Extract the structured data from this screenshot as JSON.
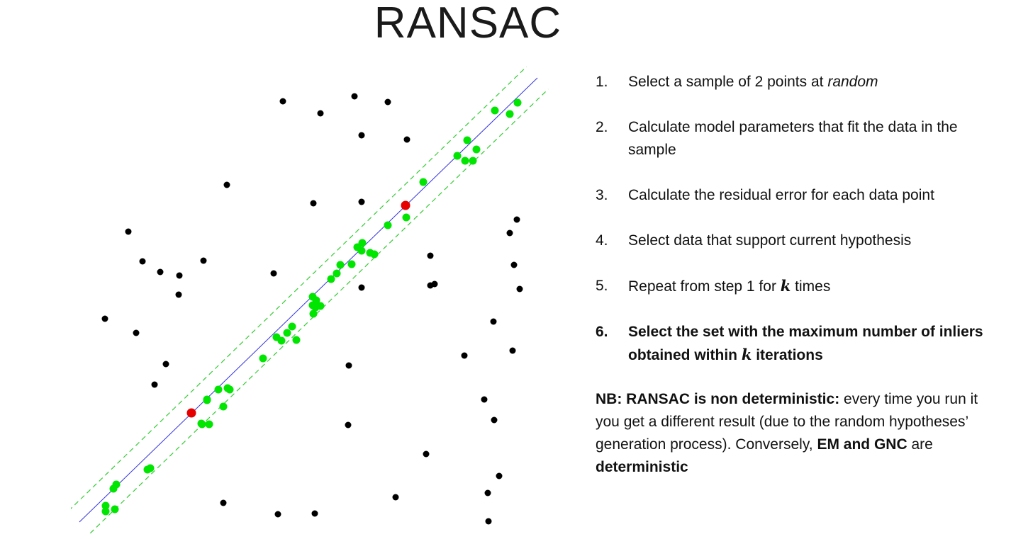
{
  "title": "RANSAC",
  "steps": [
    {
      "number": "1.",
      "text_before": "Select a sample of 2 points at ",
      "italic": "random",
      "text_after": ""
    },
    {
      "number": "2.",
      "text": "Calculate model parameters that fit the data in the sample"
    },
    {
      "number": "3.",
      "text": "Calculate the residual error for each data point"
    },
    {
      "number": "4.",
      "text": "Select data that support current hypothesis"
    },
    {
      "number": "5.",
      "text_before": "Repeat from step 1 for ",
      "var": "k",
      "text_after": " times"
    },
    {
      "number": "6.",
      "text_before": "Select the set with the maximum number of inliers obtained within ",
      "var": "k",
      "text_after": " iterations"
    }
  ],
  "note": {
    "bold_lead": "NB: RANSAC is non deterministic:",
    "text_1": " every time you run it you get a different result (due to the random hypotheses’ generation process). Conversely, ",
    "bold_2": "EM and GNC",
    "text_2": " are ",
    "bold_3": "deterministic"
  },
  "colors": {
    "outlier": "#000000",
    "inlier": "#00e600",
    "sample": "#e60000",
    "model_line": "#3333dd",
    "threshold_line": "#33cc33"
  },
  "chart_data": {
    "type": "scatter",
    "title": "",
    "xlabel": "",
    "ylabel": "",
    "grid": false,
    "model_line": {
      "from": [
        12,
        647
      ],
      "to": [
        658,
        20
      ]
    },
    "threshold_offset": 22,
    "outliers": [
      [
        299,
        53
      ],
      [
        400,
        46
      ],
      [
        447,
        54
      ],
      [
        352,
        70
      ],
      [
        410,
        101
      ],
      [
        474,
        107
      ],
      [
        220,
        171
      ],
      [
        342,
        197
      ],
      [
        410,
        195
      ],
      [
        81,
        237
      ],
      [
        101,
        279
      ],
      [
        126,
        294
      ],
      [
        153,
        299
      ],
      [
        187,
        278
      ],
      [
        152,
        326
      ],
      [
        286,
        296
      ],
      [
        48,
        360
      ],
      [
        92,
        380
      ],
      [
        134,
        424
      ],
      [
        118,
        453
      ],
      [
        410,
        316
      ],
      [
        507,
        271
      ],
      [
        507,
        313
      ],
      [
        513,
        311
      ],
      [
        629,
        220
      ],
      [
        619,
        239
      ],
      [
        625,
        284
      ],
      [
        633,
        318
      ],
      [
        596,
        364
      ],
      [
        623,
        405
      ],
      [
        555,
        412
      ],
      [
        392,
        426
      ],
      [
        583,
        474
      ],
      [
        597,
        503
      ],
      [
        391,
        510
      ],
      [
        501,
        551
      ],
      [
        604,
        582
      ],
      [
        588,
        606
      ],
      [
        215,
        620
      ],
      [
        292,
        636
      ],
      [
        344,
        635
      ],
      [
        458,
        612
      ],
      [
        589,
        646
      ]
    ],
    "inliers": [
      [
        598,
        66
      ],
      [
        619,
        71
      ],
      [
        630,
        55
      ],
      [
        559,
        108
      ],
      [
        572,
        121
      ],
      [
        545,
        130
      ],
      [
        556,
        137
      ],
      [
        567,
        137
      ],
      [
        497,
        167
      ],
      [
        473,
        217
      ],
      [
        447,
        228
      ],
      [
        411,
        253
      ],
      [
        404,
        259
      ],
      [
        410,
        264
      ],
      [
        422,
        267
      ],
      [
        428,
        269
      ],
      [
        396,
        283
      ],
      [
        380,
        284
      ],
      [
        375,
        296
      ],
      [
        367,
        304
      ],
      [
        341,
        329
      ],
      [
        346,
        334
      ],
      [
        352,
        342
      ],
      [
        341,
        341
      ],
      [
        345,
        344
      ],
      [
        342,
        353
      ],
      [
        312,
        371
      ],
      [
        305,
        380
      ],
      [
        290,
        386
      ],
      [
        297,
        391
      ],
      [
        318,
        390
      ],
      [
        271,
        416
      ],
      [
        192,
        475
      ],
      [
        208,
        460
      ],
      [
        215,
        484
      ],
      [
        221,
        458
      ],
      [
        224,
        460
      ],
      [
        184,
        508
      ],
      [
        185,
        509
      ],
      [
        195,
        509
      ],
      [
        192,
        474
      ],
      [
        112,
        571
      ],
      [
        108,
        573
      ],
      [
        60,
        600
      ],
      [
        64,
        594
      ],
      [
        49,
        624
      ],
      [
        49,
        632
      ],
      [
        62,
        629
      ]
    ],
    "samples": [
      [
        472,
        200
      ],
      [
        170,
        493
      ]
    ]
  }
}
